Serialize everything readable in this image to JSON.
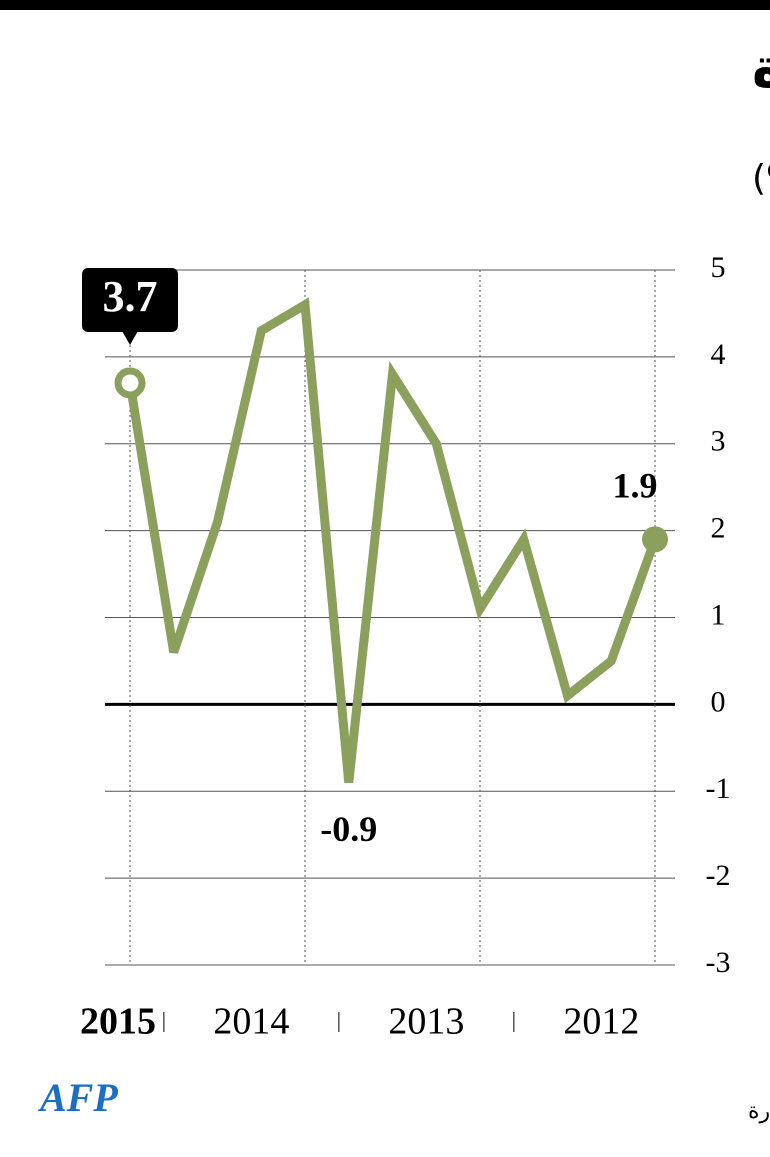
{
  "chart_data": {
    "type": "line",
    "title": "النمو في الولايات المتحدة",
    "subtitle": "اجمالي الناتج الداخلي (%)",
    "source": "المصدر: وزارة التجارة",
    "logo": "AFP",
    "x_reversed": true,
    "categories": [
      null,
      null,
      null,
      null,
      null,
      null,
      null,
      null,
      null,
      null,
      null,
      null,
      null
    ],
    "year_groups": [
      {
        "label": "2012",
        "count": 4
      },
      {
        "label": "2013",
        "count": 4
      },
      {
        "label": "2014",
        "count": 4
      },
      {
        "label": "2015",
        "count": 1
      }
    ],
    "values": [
      1.9,
      0.5,
      0.1,
      1.9,
      1.1,
      3.0,
      3.8,
      -0.9,
      4.6,
      4.3,
      2.1,
      0.6,
      3.7
    ],
    "value_labels": [
      "1.9",
      null,
      null,
      null,
      null,
      null,
      null,
      "-0.9",
      null,
      null,
      null,
      null,
      "3.7"
    ],
    "color": "#8ba05c",
    "ylim": [
      -3,
      5
    ],
    "yticks": [
      -3,
      -2,
      -1,
      0,
      1,
      2,
      3,
      4,
      5
    ],
    "grid": true
  }
}
